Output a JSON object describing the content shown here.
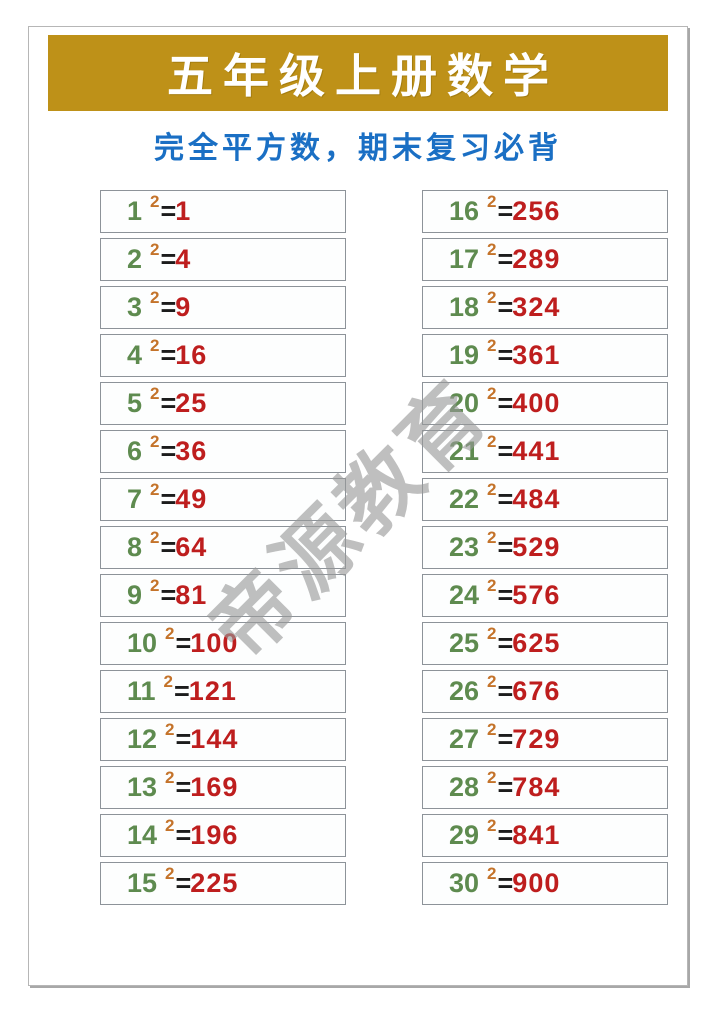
{
  "header": {
    "title": "五年级上册数学",
    "subtitle": "完全平方数，期末复习必背"
  },
  "watermark": {
    "text": "帝源教育"
  },
  "colors": {
    "banner_gold": "#be9118",
    "subtitle_blue": "#1a6fc4",
    "base_green": "#5e8b4f",
    "exponent_orange": "#c4732a",
    "equals_dark": "#1c1c1c",
    "result_red": "#be1e1e",
    "watermark_gray": "#989898",
    "cell_border_gray": "#8d9399"
  },
  "equations": {
    "exponent": "2",
    "equals": "=",
    "left_column": [
      {
        "base": "1",
        "result": "1"
      },
      {
        "base": "2",
        "result": "4"
      },
      {
        "base": "3",
        "result": "9"
      },
      {
        "base": "4",
        "result": "16"
      },
      {
        "base": "5",
        "result": "25"
      },
      {
        "base": "6",
        "result": "36"
      },
      {
        "base": "7",
        "result": "49"
      },
      {
        "base": "8",
        "result": "64"
      },
      {
        "base": "9",
        "result": "81"
      },
      {
        "base": "10",
        "result": "100"
      },
      {
        "base": "11",
        "result": "121"
      },
      {
        "base": "12",
        "result": "144"
      },
      {
        "base": "13",
        "result": "169"
      },
      {
        "base": "14",
        "result": "196"
      },
      {
        "base": "15",
        "result": "225"
      }
    ],
    "right_column": [
      {
        "base": "16",
        "result": "256"
      },
      {
        "base": "17",
        "result": "289"
      },
      {
        "base": "18",
        "result": "324"
      },
      {
        "base": "19",
        "result": "361"
      },
      {
        "base": "20",
        "result": "400"
      },
      {
        "base": "21",
        "result": "441"
      },
      {
        "base": "22",
        "result": "484"
      },
      {
        "base": "23",
        "result": "529"
      },
      {
        "base": "24",
        "result": "576"
      },
      {
        "base": "25",
        "result": "625"
      },
      {
        "base": "26",
        "result": "676"
      },
      {
        "base": "27",
        "result": "729"
      },
      {
        "base": "28",
        "result": "784"
      },
      {
        "base": "29",
        "result": "841"
      },
      {
        "base": "30",
        "result": "900"
      }
    ]
  }
}
